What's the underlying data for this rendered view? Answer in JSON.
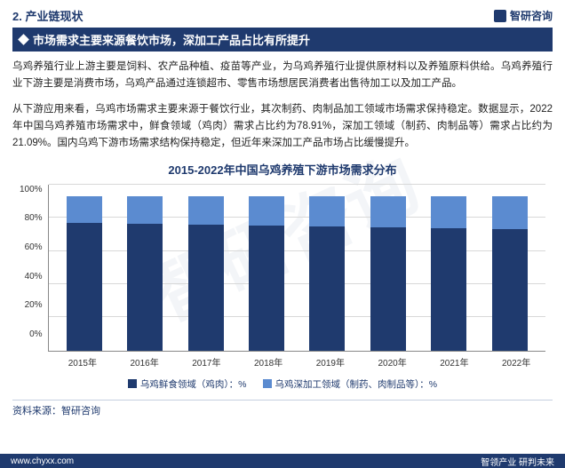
{
  "section_label": "2. 产业链现状",
  "brand": "智研咨询",
  "title": "市场需求主要来源餐饮市场，深加工产品占比有所提升",
  "para1": "乌鸡养殖行业上游主要是饲料、农产品种植、疫苗等产业，为乌鸡养殖行业提供原材料以及养殖原料供给。乌鸡养殖行业下游主要是消费市场，乌鸡产品通过连锁超市、零售市场想居民消费者出售待加工以及加工产品。",
  "para2": "从下游应用来看，乌鸡市场需求主要来源于餐饮行业，其次制药、肉制品加工领域市场需求保持稳定。数据显示，2022年中国乌鸡养殖市场需求中，鲜食领域（鸡肉）需求占比约为78.91%，深加工领域（制药、肉制品等）需求占比约为21.09%。国内乌鸡下游市场需求结构保持稳定，但近年来深加工产品市场占比缓慢提升。",
  "chart": {
    "type": "stacked-bar",
    "title": "2015-2022年中国乌鸡养殖下游市场需求分布",
    "categories": [
      "2015年",
      "2016年",
      "2017年",
      "2018年",
      "2019年",
      "2020年",
      "2021年",
      "2022年"
    ],
    "series": [
      {
        "name": "乌鸡鲜食领域（鸡肉）：%",
        "color": "#1f3a6e",
        "values": [
          82.5,
          82.0,
          81.5,
          81.0,
          80.5,
          80.0,
          79.5,
          78.91
        ]
      },
      {
        "name": "乌鸡深加工领域（制药、肉制品等）：%",
        "color": "#5b8bd0",
        "values": [
          17.5,
          18.0,
          18.5,
          19.0,
          19.5,
          20.0,
          20.5,
          21.09
        ]
      }
    ],
    "ylim": [
      0,
      100
    ],
    "yticks": [
      0,
      20,
      40,
      60,
      80,
      100
    ],
    "ytick_labels": [
      "0%",
      "20%",
      "40%",
      "60%",
      "80%",
      "100%"
    ],
    "grid_color": "#d8d8d8",
    "background_color": "#ffffff"
  },
  "source": "资料来源：智研咨询",
  "footer_left": "www.chyxx.com",
  "footer_right": "智领产业 研判未来",
  "watermark": "智研咨询"
}
